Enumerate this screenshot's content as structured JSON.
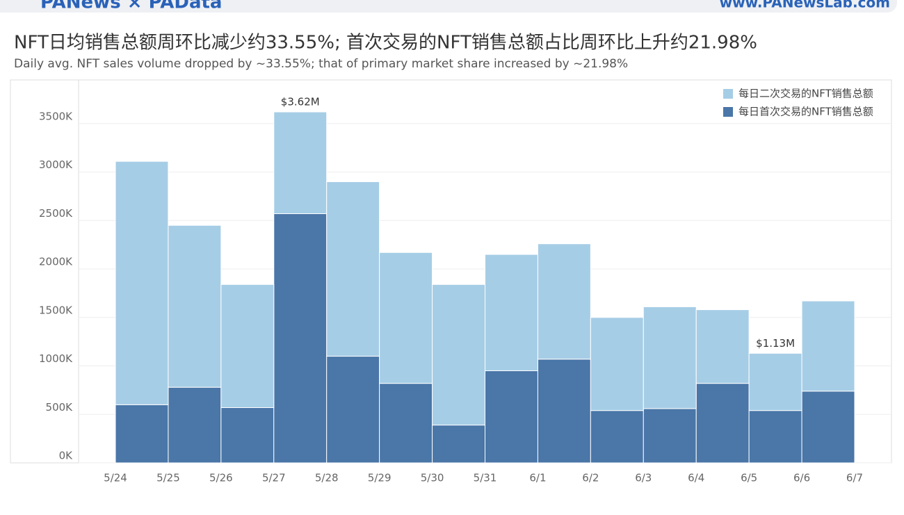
{
  "header": {
    "brand": "PANews × PAData",
    "site": "www.PANewsLab.com"
  },
  "chart_data": {
    "type": "histogram",
    "title": "NFT日均销售总额周环比减少约33.55%; 首次交易的NFT销售总额占比周环比上升约21.98%",
    "subtitle": "Daily avg. NFT sales volume dropped by ~33.55%; that of primary market share increased by ~21.98%",
    "bins": [
      "5/24",
      "5/25",
      "5/26",
      "5/27",
      "5/28",
      "5/29",
      "5/30",
      "5/31",
      "6/1",
      "6/2",
      "6/3",
      "6/4",
      "6/5",
      "6/6",
      "6/7"
    ],
    "series": [
      {
        "name": "每日首次交易的NFT销售总额",
        "color": "#4a76a8",
        "values": [
          600,
          780,
          570,
          2570,
          1100,
          820,
          390,
          950,
          1070,
          540,
          560,
          820,
          540,
          740
        ]
      },
      {
        "name": "每日二次交易的NFT销售总额",
        "color": "#a6cde6",
        "values": [
          2510,
          1670,
          1270,
          1050,
          1800,
          1350,
          1450,
          1200,
          1190,
          960,
          1050,
          760,
          590,
          930
        ]
      }
    ],
    "annotations": [
      {
        "label": "$3.62M",
        "category": "5/27"
      },
      {
        "label": "$1.13M",
        "category": "6/5"
      }
    ],
    "ylim": [
      0,
      3950
    ],
    "yticks": [
      {
        "value": 0,
        "label": "0K"
      },
      {
        "value": 500,
        "label": "500K"
      },
      {
        "value": 1000,
        "label": "1000K"
      },
      {
        "value": 1500,
        "label": "1500K"
      },
      {
        "value": 2000,
        "label": "2000K"
      },
      {
        "value": 2500,
        "label": "2500K"
      },
      {
        "value": 3000,
        "label": "3000K"
      },
      {
        "value": 3500,
        "label": "3500K"
      }
    ],
    "grid": true,
    "legend": "top-right"
  }
}
